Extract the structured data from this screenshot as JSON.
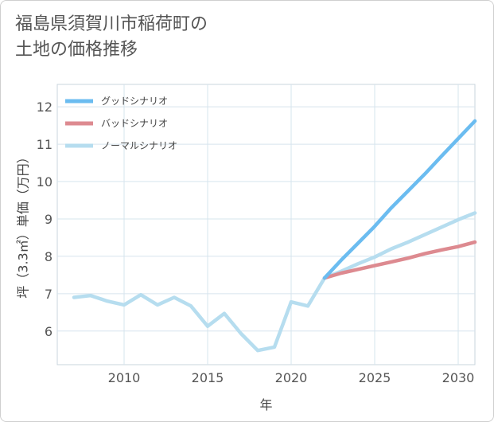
{
  "title_lines": [
    "福島県須賀川市稲荷町の",
    "土地の価格推移"
  ],
  "colors": {
    "good": "#6bbcf0",
    "bad": "#dd8a90",
    "normal": "#b6ddef",
    "grid": "#d6e4ee",
    "plot_bg": "#ffffff"
  },
  "chart_data": {
    "type": "line",
    "xlabel": "年",
    "ylabel": "坪（3.3㎡）単価（万円）",
    "xlim": [
      2006,
      2031
    ],
    "ylim": [
      5.1,
      12.6
    ],
    "x_ticks": [
      2010,
      2015,
      2020,
      2025,
      2030
    ],
    "y_ticks": [
      6,
      7,
      8,
      9,
      10,
      11,
      12
    ],
    "legend_position": "top-left",
    "grid": true,
    "series": [
      {
        "name": "グッドシナリオ",
        "color": "#6bbcf0",
        "x": [
          2022,
          2023,
          2024,
          2025,
          2026,
          2027,
          2028,
          2029,
          2030,
          2031
        ],
        "y": [
          7.42,
          7.9,
          8.35,
          8.8,
          9.3,
          9.75,
          10.2,
          10.68,
          11.15,
          11.62
        ]
      },
      {
        "name": "バッドシナリオ",
        "color": "#dd8a90",
        "x": [
          2022,
          2023,
          2024,
          2025,
          2026,
          2027,
          2028,
          2029,
          2030,
          2031
        ],
        "y": [
          7.42,
          7.55,
          7.65,
          7.75,
          7.85,
          7.95,
          8.07,
          8.17,
          8.26,
          8.38
        ]
      },
      {
        "name": "ノーマルシナリオ",
        "color": "#b6ddef",
        "x": [
          2007,
          2008,
          2009,
          2010,
          2011,
          2012,
          2013,
          2014,
          2015,
          2016,
          2017,
          2018,
          2019,
          2020,
          2021,
          2022,
          2023,
          2024,
          2025,
          2026,
          2027,
          2028,
          2029,
          2030,
          2031
        ],
        "y": [
          6.9,
          6.95,
          6.8,
          6.7,
          6.97,
          6.7,
          6.9,
          6.67,
          6.13,
          6.47,
          5.93,
          5.48,
          5.57,
          6.78,
          6.67,
          7.42,
          7.6,
          7.8,
          7.98,
          8.2,
          8.38,
          8.58,
          8.78,
          8.98,
          9.16
        ]
      }
    ]
  }
}
